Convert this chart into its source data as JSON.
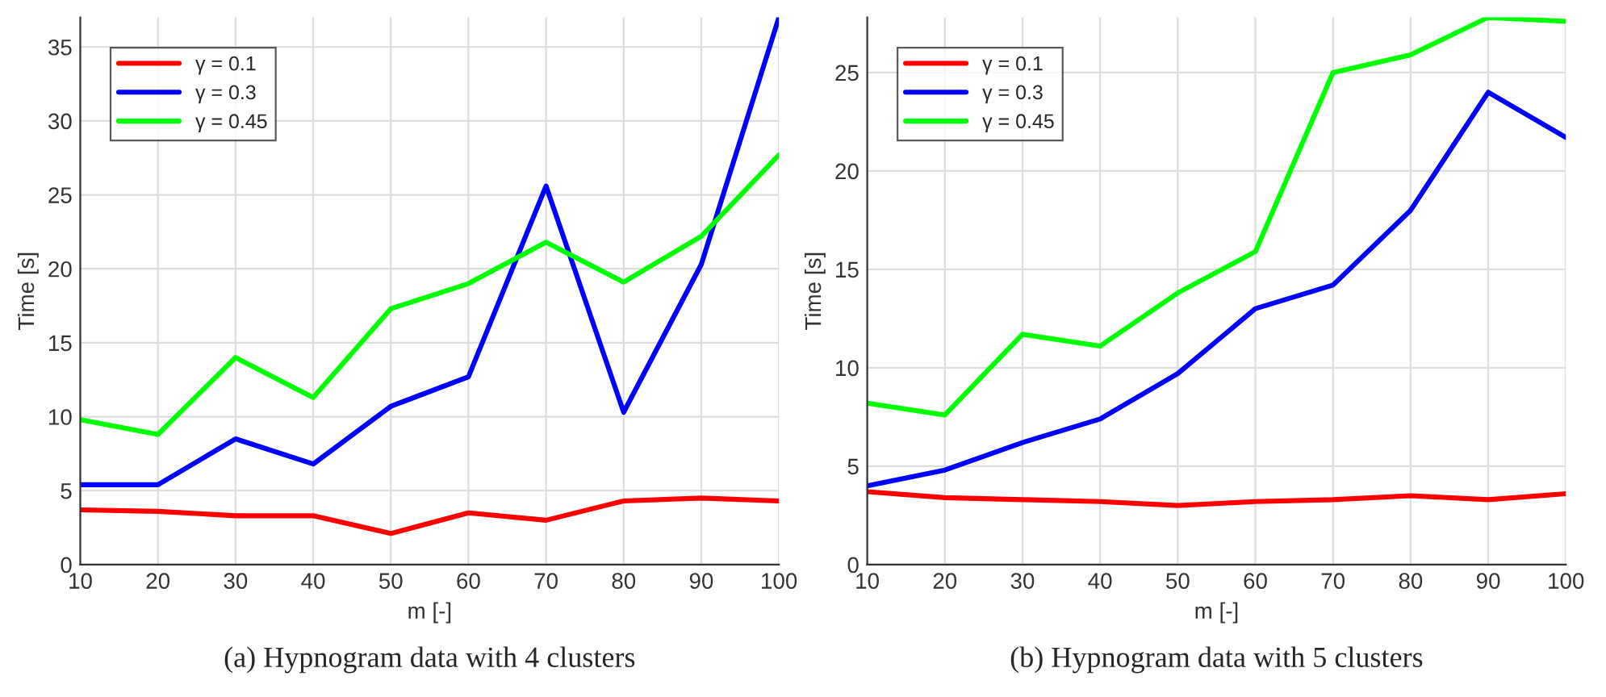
{
  "chart_data": [
    {
      "type": "line",
      "title": "(a) Hypnogram data with 4 clusters",
      "xlabel": "m [-]",
      "ylabel": "Time [s]",
      "x": [
        10,
        20,
        30,
        40,
        50,
        60,
        70,
        80,
        90,
        100
      ],
      "series": [
        {
          "name": "γ = 0.1",
          "color": "#ff0000",
          "values": [
            3.7,
            3.6,
            3.3,
            3.3,
            2.1,
            3.5,
            3.0,
            4.3,
            4.5,
            4.3
          ]
        },
        {
          "name": "γ = 0.3",
          "color": "#0000ff",
          "values": [
            5.4,
            5.4,
            8.5,
            6.8,
            10.7,
            12.7,
            25.6,
            10.3,
            20.3,
            37
          ]
        },
        {
          "name": "γ = 0.45",
          "color": "#00ff00",
          "values": [
            9.8,
            8.8,
            14.0,
            11.3,
            17.3,
            19.0,
            21.8,
            19.1,
            22.2,
            27.7
          ]
        }
      ],
      "xlim": [
        10,
        100
      ],
      "xticks": [
        10,
        20,
        30,
        40,
        50,
        60,
        70,
        80,
        90,
        100
      ],
      "ylim": [
        0,
        37
      ],
      "yticks": [
        0,
        5,
        10,
        15,
        20,
        25,
        30,
        35
      ],
      "grid": true,
      "legend": "top left",
      "line_style": "solid",
      "marker": "none"
    },
    {
      "type": "line",
      "title": "(b) Hypnogram data with 5 clusters",
      "xlabel": "m [-]",
      "ylabel": "Time [s]",
      "x": [
        10,
        20,
        30,
        40,
        50,
        60,
        70,
        80,
        90,
        100
      ],
      "series": [
        {
          "name": "γ = 0.1",
          "color": "#ff0000",
          "values": [
            3.7,
            3.4,
            3.3,
            3.2,
            3.0,
            3.2,
            3.3,
            3.5,
            3.3,
            3.6
          ]
        },
        {
          "name": "γ = 0.3",
          "color": "#0000ff",
          "values": [
            4.0,
            4.8,
            6.2,
            7.4,
            9.7,
            13.0,
            14.2,
            18.0,
            24.0,
            21.7
          ]
        },
        {
          "name": "γ = 0.45",
          "color": "#00ff00",
          "values": [
            8.2,
            7.6,
            11.7,
            11.1,
            13.8,
            15.9,
            25.0,
            25.9,
            27.8,
            27.6
          ]
        }
      ],
      "xlim": [
        10,
        100
      ],
      "xticks": [
        10,
        20,
        30,
        40,
        50,
        60,
        70,
        80,
        90,
        100
      ],
      "ylim": [
        0,
        27.8
      ],
      "yticks": [
        0,
        5,
        10,
        15,
        20,
        25
      ],
      "grid": true,
      "legend": "top left",
      "line_style": "solid",
      "marker": "none"
    }
  ]
}
